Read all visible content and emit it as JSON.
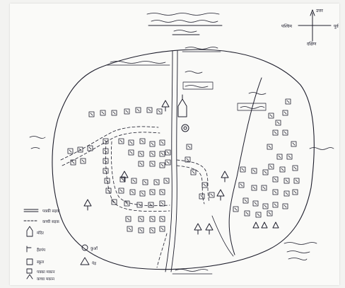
{
  "colors": {
    "paper": "#fafaf8",
    "ink": "#1d1d2b",
    "background": "#f3f3f1"
  },
  "compass": {
    "north": "उत्तर",
    "south": "दक्षिण",
    "east": "पूर्व",
    "west": "पश्चिम"
  },
  "legend": {
    "items": [
      {
        "symbol": "double-line",
        "label": "पक्की सड़क"
      },
      {
        "symbol": "dashed-line",
        "label": "कच्ची सड़क"
      },
      {
        "symbol": "temple-icon",
        "label": "मंदिर"
      },
      {
        "symbol": "hand-pump-icon",
        "label": "हैंडपंप"
      },
      {
        "symbol": "school-icon",
        "label": "स्कूल"
      },
      {
        "symbol": "pucca-house-icon",
        "label": "पक्का मकान"
      },
      {
        "symbol": "kachcha-house-icon",
        "label": "कच्चा मकान"
      },
      {
        "symbol": "well-icon",
        "label": "कुआँ"
      },
      {
        "symbol": "tree-icon",
        "label": "पेड़"
      }
    ]
  },
  "icons": {
    "temple": "temple-icon",
    "tree": "tree-icon",
    "well": "well-icon",
    "hand_pump": "hand-pump-icon",
    "compass": "compass-rose-icon"
  }
}
